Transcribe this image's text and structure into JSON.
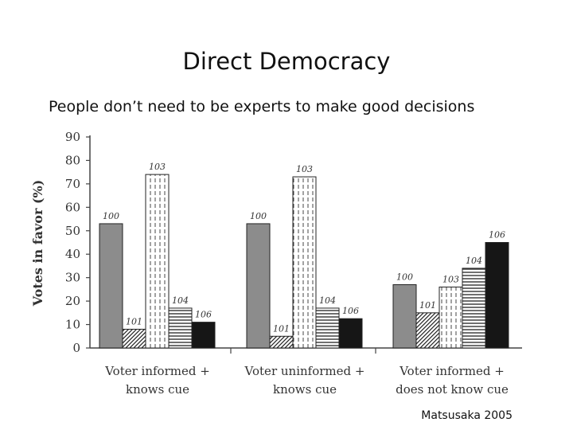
{
  "slide": {
    "title": "Direct Democracy",
    "subtitle": "People don’t need to be experts to make good decisions",
    "credit": "Matsusaka 2005"
  },
  "chart_data": {
    "type": "bar",
    "title": "",
    "ylabel": "Votes in favor (%)",
    "ylim": [
      0,
      90
    ],
    "yticks": [
      0,
      10,
      20,
      30,
      40,
      50,
      60,
      70,
      80,
      90
    ],
    "grid": false,
    "categories": [
      [
        "Voter informed +",
        "knows cue"
      ],
      [
        "Voter uninformed +",
        "knows cue"
      ],
      [
        "Voter informed +",
        "does not know cue"
      ]
    ],
    "series": [
      {
        "label": "100",
        "style": "solid-gray",
        "values": [
          53,
          53,
          27
        ]
      },
      {
        "label": "101",
        "style": "diagonal-hatch",
        "values": [
          8,
          5,
          15
        ]
      },
      {
        "label": "103",
        "style": "dashed-vertical",
        "values": [
          74,
          73,
          26
        ]
      },
      {
        "label": "104",
        "style": "horizontal-lines",
        "values": [
          17,
          17,
          34
        ]
      },
      {
        "label": "106",
        "style": "solid-black",
        "values": [
          11,
          12.5,
          45
        ]
      }
    ],
    "colors": {
      "solid-gray": "#8c8c8c",
      "solid-black": "#161616",
      "stroke": "#222222"
    }
  }
}
